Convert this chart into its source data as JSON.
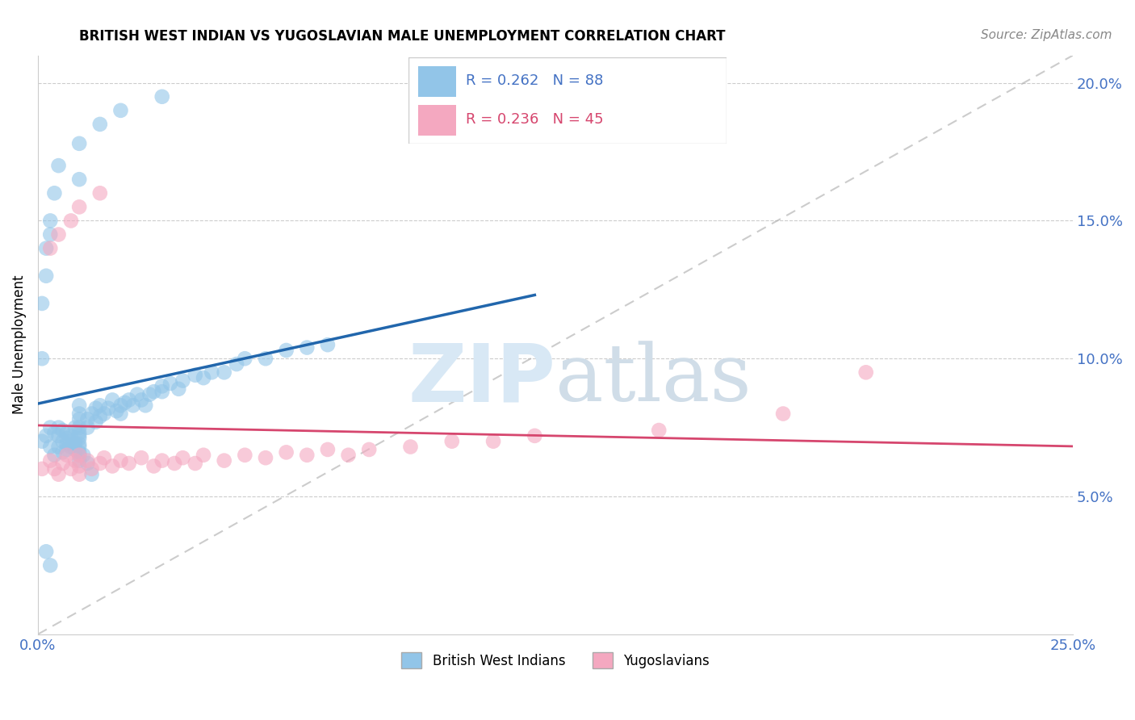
{
  "title": "BRITISH WEST INDIAN VS YUGOSLAVIAN MALE UNEMPLOYMENT CORRELATION CHART",
  "source": "Source: ZipAtlas.com",
  "ylabel": "Male Unemployment",
  "xlim": [
    0.0,
    0.25
  ],
  "ylim": [
    0.0,
    0.21
  ],
  "xticks": [
    0.0,
    0.05,
    0.1,
    0.15,
    0.2,
    0.25
  ],
  "xticklabels": [
    "0.0%",
    "",
    "",
    "",
    "",
    "25.0%"
  ],
  "yticks": [
    0.05,
    0.1,
    0.15,
    0.2
  ],
  "yticklabels": [
    "5.0%",
    "10.0%",
    "15.0%",
    "20.0%"
  ],
  "blue_R": 0.262,
  "blue_N": 88,
  "pink_R": 0.236,
  "pink_N": 45,
  "legend_labels": [
    "British West Indians",
    "Yugoslavians"
  ],
  "blue_color": "#92c5e8",
  "pink_color": "#f4a8c0",
  "blue_line_color": "#2166ac",
  "pink_line_color": "#d6466e",
  "ref_line_color": "#aaaaaa",
  "tick_color": "#4472c4",
  "watermark_color": "#d8e8f5",
  "blue_x": [
    0.001,
    0.002,
    0.003,
    0.003,
    0.004,
    0.004,
    0.005,
    0.005,
    0.005,
    0.006,
    0.006,
    0.006,
    0.007,
    0.007,
    0.007,
    0.007,
    0.008,
    0.008,
    0.008,
    0.009,
    0.009,
    0.009,
    0.01,
    0.01,
    0.01,
    0.01,
    0.01,
    0.01,
    0.01,
    0.01,
    0.01,
    0.01,
    0.01,
    0.01,
    0.012,
    0.012,
    0.013,
    0.014,
    0.014,
    0.015,
    0.015,
    0.016,
    0.017,
    0.018,
    0.019,
    0.02,
    0.02,
    0.021,
    0.022,
    0.023,
    0.024,
    0.025,
    0.026,
    0.027,
    0.028,
    0.03,
    0.03,
    0.032,
    0.034,
    0.035,
    0.038,
    0.04,
    0.042,
    0.045,
    0.048,
    0.05,
    0.055,
    0.06,
    0.065,
    0.07,
    0.001,
    0.001,
    0.002,
    0.002,
    0.003,
    0.003,
    0.004,
    0.005,
    0.01,
    0.01,
    0.015,
    0.02,
    0.03,
    0.011,
    0.012,
    0.013,
    0.002,
    0.003
  ],
  "blue_y": [
    0.07,
    0.072,
    0.075,
    0.068,
    0.073,
    0.065,
    0.072,
    0.068,
    0.075,
    0.07,
    0.074,
    0.066,
    0.071,
    0.069,
    0.067,
    0.073,
    0.068,
    0.072,
    0.07,
    0.067,
    0.075,
    0.069,
    0.071,
    0.068,
    0.073,
    0.065,
    0.063,
    0.066,
    0.069,
    0.072,
    0.075,
    0.078,
    0.08,
    0.083,
    0.078,
    0.075,
    0.08,
    0.082,
    0.077,
    0.083,
    0.079,
    0.08,
    0.082,
    0.085,
    0.081,
    0.083,
    0.08,
    0.084,
    0.085,
    0.083,
    0.087,
    0.085,
    0.083,
    0.087,
    0.088,
    0.09,
    0.088,
    0.091,
    0.089,
    0.092,
    0.094,
    0.093,
    0.095,
    0.095,
    0.098,
    0.1,
    0.1,
    0.103,
    0.104,
    0.105,
    0.1,
    0.12,
    0.13,
    0.14,
    0.145,
    0.15,
    0.16,
    0.17,
    0.178,
    0.165,
    0.185,
    0.19,
    0.195,
    0.065,
    0.062,
    0.058,
    0.03,
    0.025
  ],
  "pink_x": [
    0.001,
    0.003,
    0.004,
    0.005,
    0.006,
    0.007,
    0.008,
    0.009,
    0.01,
    0.01,
    0.01,
    0.012,
    0.013,
    0.015,
    0.016,
    0.018,
    0.02,
    0.022,
    0.025,
    0.028,
    0.03,
    0.033,
    0.035,
    0.038,
    0.04,
    0.045,
    0.05,
    0.055,
    0.06,
    0.065,
    0.07,
    0.075,
    0.08,
    0.09,
    0.1,
    0.11,
    0.12,
    0.15,
    0.18,
    0.2,
    0.003,
    0.005,
    0.008,
    0.01,
    0.015
  ],
  "pink_y": [
    0.06,
    0.063,
    0.06,
    0.058,
    0.062,
    0.065,
    0.06,
    0.063,
    0.061,
    0.058,
    0.065,
    0.063,
    0.06,
    0.062,
    0.064,
    0.061,
    0.063,
    0.062,
    0.064,
    0.061,
    0.063,
    0.062,
    0.064,
    0.062,
    0.065,
    0.063,
    0.065,
    0.064,
    0.066,
    0.065,
    0.067,
    0.065,
    0.067,
    0.068,
    0.07,
    0.07,
    0.072,
    0.074,
    0.08,
    0.095,
    0.14,
    0.145,
    0.15,
    0.155,
    0.16
  ]
}
